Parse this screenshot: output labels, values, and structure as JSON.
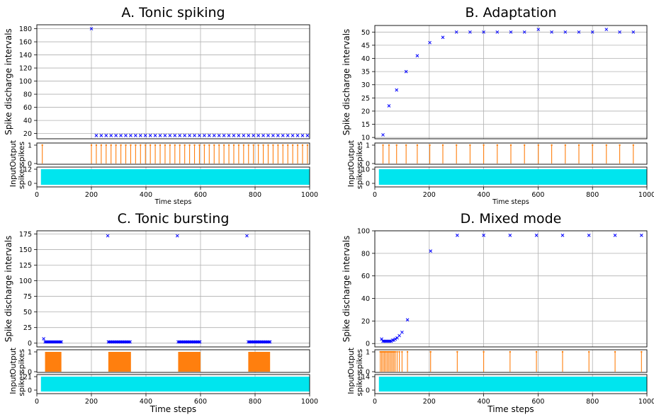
{
  "figure": {
    "colors": {
      "marker": "#0000ff",
      "output_spike": "#ff7f0e",
      "input_spike": "#00e5ee",
      "grid": "#b0b0b0",
      "axis": "#000000"
    }
  },
  "chart_data": [
    {
      "type": "scatter",
      "title": "A. Tonic spiking",
      "ylabel": "Spike discharge intervals",
      "xlabel": "Time steps",
      "xlim": [
        0,
        1000
      ],
      "xticks": [
        0,
        200,
        400,
        600,
        800,
        1000
      ],
      "ylim": [
        12,
        186
      ],
      "yticks": [
        20,
        40,
        60,
        80,
        100,
        120,
        140,
        160,
        180
      ],
      "grid": true,
      "output_ylabel": "Output\nspikes",
      "output_yticks": [
        0,
        1
      ],
      "input_ylabel": "Input\nspikes",
      "input_yticks": [
        0,
        12
      ],
      "input_range": [
        15,
        1000
      ],
      "points": [
        [
          200,
          180
        ],
        [
          218,
          17
        ],
        [
          236,
          17
        ],
        [
          254,
          17
        ],
        [
          272,
          17
        ],
        [
          290,
          17
        ],
        [
          308,
          17
        ],
        [
          326,
          17
        ],
        [
          344,
          17
        ],
        [
          362,
          17
        ],
        [
          380,
          17
        ],
        [
          398,
          17
        ],
        [
          416,
          17
        ],
        [
          434,
          17
        ],
        [
          452,
          17
        ],
        [
          470,
          17
        ],
        [
          488,
          17
        ],
        [
          506,
          17
        ],
        [
          524,
          17
        ],
        [
          542,
          17
        ],
        [
          560,
          17
        ],
        [
          578,
          17
        ],
        [
          596,
          17
        ],
        [
          614,
          17
        ],
        [
          632,
          17
        ],
        [
          650,
          17
        ],
        [
          668,
          17
        ],
        [
          686,
          17
        ],
        [
          704,
          17
        ],
        [
          722,
          17
        ],
        [
          740,
          17
        ],
        [
          758,
          17
        ],
        [
          776,
          17
        ],
        [
          794,
          17
        ],
        [
          812,
          17
        ],
        [
          830,
          17
        ],
        [
          848,
          17
        ],
        [
          866,
          17
        ],
        [
          884,
          17
        ],
        [
          902,
          17
        ],
        [
          920,
          17
        ],
        [
          938,
          17
        ],
        [
          956,
          17
        ],
        [
          974,
          17
        ],
        [
          992,
          17
        ]
      ],
      "spikes": [
        20,
        200,
        218,
        236,
        254,
        272,
        290,
        308,
        326,
        344,
        362,
        380,
        398,
        416,
        434,
        452,
        470,
        488,
        506,
        524,
        542,
        560,
        578,
        596,
        614,
        632,
        650,
        668,
        686,
        704,
        722,
        740,
        758,
        776,
        794,
        812,
        830,
        848,
        866,
        884,
        902,
        920,
        938,
        956,
        974,
        992
      ]
    },
    {
      "type": "scatter",
      "title": "B. Adaptation",
      "ylabel": "Spike discharge intervals",
      "xlabel": "Time steps",
      "xlim": [
        0,
        1000
      ],
      "xticks": [
        0,
        200,
        400,
        600,
        800,
        1000
      ],
      "ylim": [
        9.5,
        52.5
      ],
      "yticks": [
        10,
        15,
        20,
        25,
        30,
        35,
        40,
        45,
        50
      ],
      "grid": true,
      "output_ylabel": "Output\nspikes",
      "output_yticks": [
        0,
        1
      ],
      "input_ylabel": "Input\nspikes",
      "input_yticks": [
        0,
        10
      ],
      "input_range": [
        15,
        1000
      ],
      "points": [
        [
          30,
          11
        ],
        [
          52,
          22
        ],
        [
          80,
          28
        ],
        [
          115,
          35
        ],
        [
          156,
          41
        ],
        [
          202,
          46
        ],
        [
          250,
          48
        ],
        [
          300,
          50
        ],
        [
          350,
          50
        ],
        [
          400,
          50
        ],
        [
          450,
          50
        ],
        [
          500,
          50
        ],
        [
          550,
          50
        ],
        [
          601,
          51
        ],
        [
          650,
          50
        ],
        [
          700,
          50
        ],
        [
          750,
          50
        ],
        [
          800,
          50
        ],
        [
          851,
          51
        ],
        [
          900,
          50
        ],
        [
          950,
          50
        ]
      ],
      "spikes": [
        30,
        52,
        80,
        115,
        156,
        202,
        250,
        300,
        350,
        400,
        450,
        500,
        550,
        601,
        650,
        700,
        750,
        800,
        851,
        900,
        950
      ]
    },
    {
      "type": "scatter",
      "title": "C. Tonic bursting",
      "ylabel": "Spike discharge intervals",
      "xlabel": "Time steps",
      "xlim": [
        0,
        1000
      ],
      "xticks": [
        0,
        200,
        400,
        600,
        800,
        1000
      ],
      "ylim": [
        -6,
        180
      ],
      "yticks": [
        0,
        25,
        50,
        75,
        100,
        125,
        150,
        175
      ],
      "grid": true,
      "output_ylabel": "Output\nspikes",
      "output_yticks": [
        0,
        1
      ],
      "input_ylabel": "Input\nspikes",
      "input_yticks": [
        0,
        21
      ],
      "input_range": [
        15,
        1000
      ],
      "outliers": [
        [
          25,
          7
        ],
        [
          260,
          172
        ],
        [
          515,
          172
        ],
        [
          770,
          172
        ]
      ],
      "bursts": [
        [
          30,
          90
        ],
        [
          262,
          345
        ],
        [
          518,
          600
        ],
        [
          775,
          855
        ]
      ],
      "burst_value": 2
    },
    {
      "type": "scatter",
      "title": "D. Mixed mode",
      "ylabel": "Spike discharge intervals",
      "xlabel": "Time steps",
      "xlim": [
        0,
        1000
      ],
      "xticks": [
        0,
        200,
        400,
        600,
        800,
        1000
      ],
      "ylim": [
        -3,
        100
      ],
      "yticks": [
        0,
        20,
        40,
        60,
        80,
        100
      ],
      "grid": true,
      "output_ylabel": "Output\nspikes",
      "output_yticks": [
        0,
        1
      ],
      "input_ylabel": "Input\nspikes",
      "input_yticks": [
        0,
        14
      ],
      "input_range": [
        15,
        1000
      ],
      "points": [
        [
          25,
          4
        ],
        [
          30,
          2
        ],
        [
          35,
          2
        ],
        [
          40,
          2
        ],
        [
          45,
          2
        ],
        [
          50,
          2
        ],
        [
          55,
          2
        ],
        [
          60,
          2
        ],
        [
          65,
          3
        ],
        [
          70,
          3
        ],
        [
          75,
          4
        ],
        [
          82,
          5
        ],
        [
          90,
          7
        ],
        [
          100,
          10
        ],
        [
          120,
          21
        ],
        [
          205,
          82
        ],
        [
          303,
          96
        ],
        [
          400,
          96
        ],
        [
          497,
          96
        ],
        [
          594,
          96
        ],
        [
          690,
          96
        ],
        [
          787,
          96
        ],
        [
          883,
          96
        ],
        [
          980,
          96
        ]
      ],
      "spikes": [
        20,
        25,
        30,
        35,
        40,
        45,
        50,
        55,
        60,
        65,
        70,
        75,
        82,
        90,
        100,
        120,
        205,
        303,
        400,
        497,
        594,
        690,
        787,
        883,
        980
      ]
    }
  ]
}
